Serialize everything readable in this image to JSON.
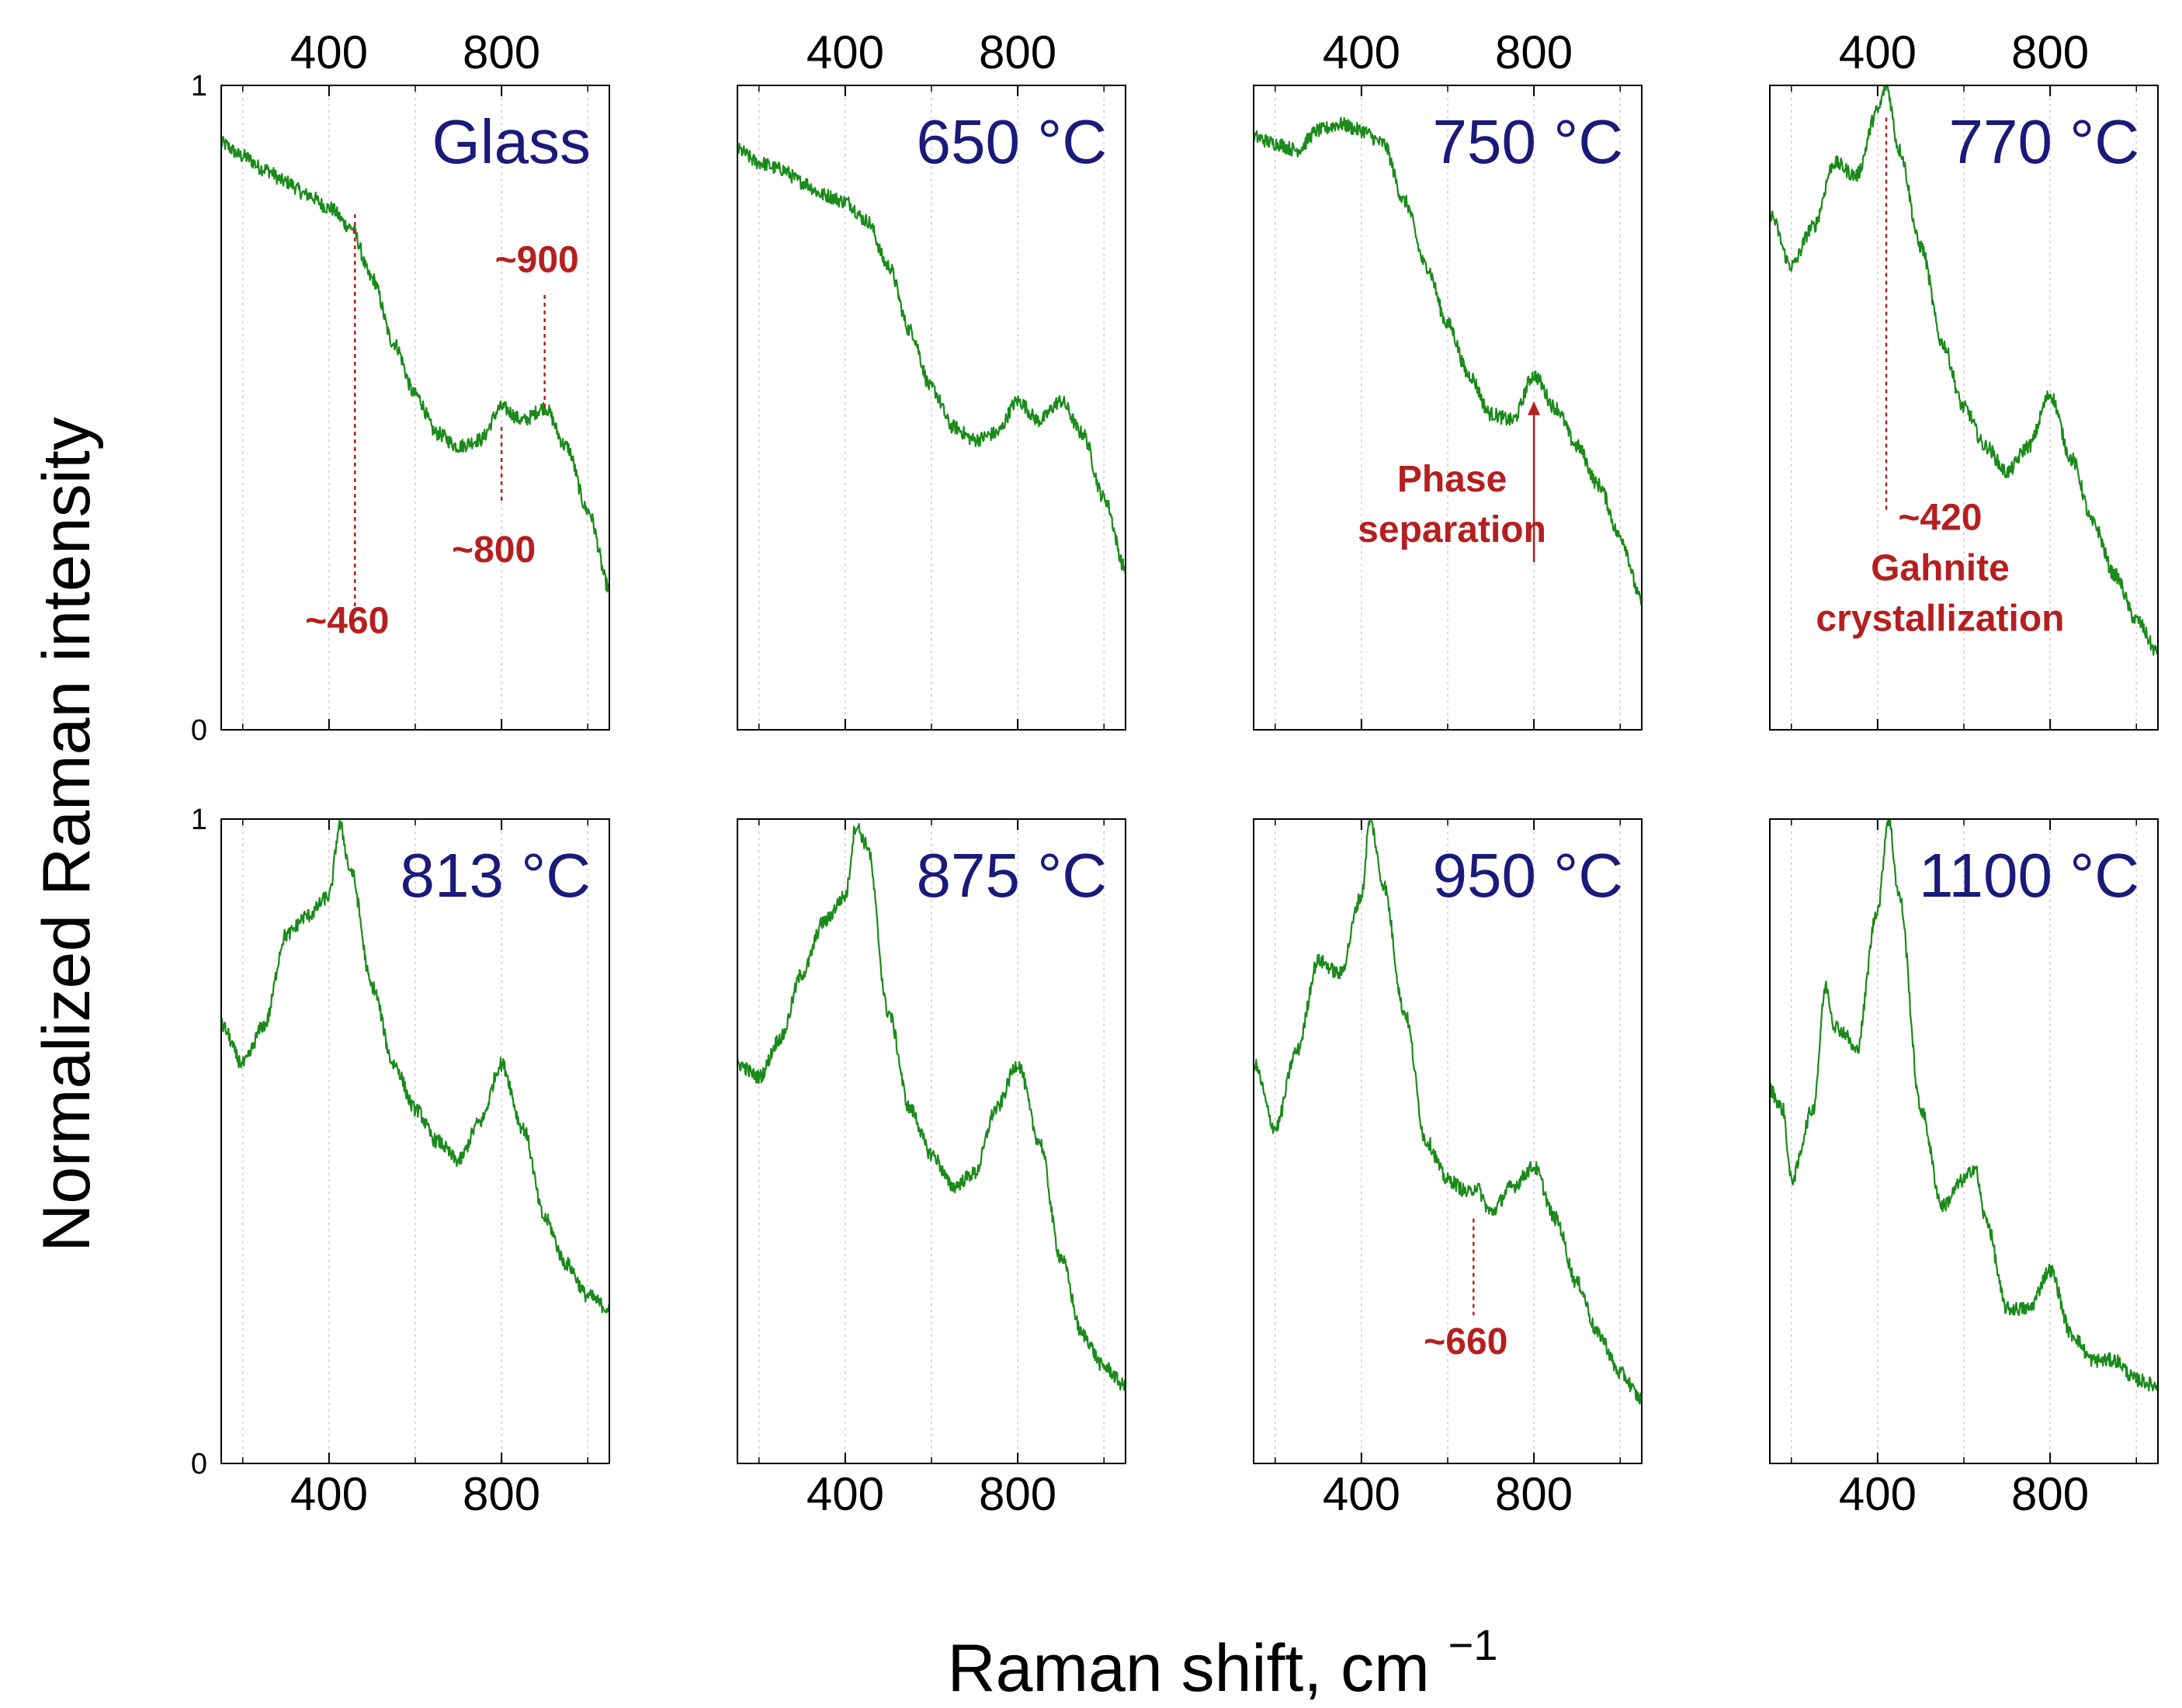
{
  "chart_data": {
    "type": "line",
    "ylabel": "Normalized Raman intensity",
    "xlabel": "Raman shift, cm",
    "xlabel_superscript": "−1",
    "xlim": [
      150,
      1050
    ],
    "ylim": [
      0,
      1
    ],
    "x_ticks": [
      "400",
      "800"
    ],
    "x_tick_values": [
      400,
      800
    ],
    "y_ticks": [
      "0",
      "1"
    ],
    "y_tick_values": [
      0,
      1
    ],
    "colors": {
      "line": "#1a8a1a",
      "label": "#1a1a7a",
      "annotation": "#b51f1f",
      "grid": "#cccccc"
    },
    "panels": [
      {
        "label": "Glass",
        "points": [
          [
            150,
            0.91
          ],
          [
            200,
            0.89
          ],
          [
            250,
            0.87
          ],
          [
            300,
            0.85
          ],
          [
            350,
            0.83
          ],
          [
            400,
            0.81
          ],
          [
            450,
            0.78
          ],
          [
            500,
            0.7
          ],
          [
            550,
            0.6
          ],
          [
            600,
            0.52
          ],
          [
            650,
            0.46
          ],
          [
            700,
            0.44
          ],
          [
            750,
            0.45
          ],
          [
            800,
            0.5
          ],
          [
            850,
            0.48
          ],
          [
            900,
            0.5
          ],
          [
            950,
            0.44
          ],
          [
            1000,
            0.34
          ],
          [
            1050,
            0.22
          ]
        ],
        "annotations": [
          {
            "text": "~460",
            "x": 460,
            "y_from": 0.8,
            "y_to": 0.18,
            "label_y": 0.15
          },
          {
            "text": "~800",
            "x": 800,
            "y_from": 0.47,
            "y_to": 0.35,
            "label_y": 0.26
          },
          {
            "text": "~900",
            "x": 900,
            "y_from": 0.5,
            "y_to": 0.68,
            "label_y": 0.71
          }
        ]
      },
      {
        "label": "650 °C",
        "points": [
          [
            150,
            0.9
          ],
          [
            200,
            0.88
          ],
          [
            250,
            0.87
          ],
          [
            300,
            0.85
          ],
          [
            350,
            0.83
          ],
          [
            400,
            0.82
          ],
          [
            450,
            0.79
          ],
          [
            500,
            0.72
          ],
          [
            550,
            0.62
          ],
          [
            600,
            0.53
          ],
          [
            650,
            0.47
          ],
          [
            700,
            0.45
          ],
          [
            750,
            0.46
          ],
          [
            800,
            0.51
          ],
          [
            850,
            0.48
          ],
          [
            900,
            0.51
          ],
          [
            950,
            0.46
          ],
          [
            1000,
            0.36
          ],
          [
            1050,
            0.25
          ]
        ],
        "annotations": []
      },
      {
        "label": "750 °C",
        "points": [
          [
            150,
            0.92
          ],
          [
            200,
            0.91
          ],
          [
            250,
            0.9
          ],
          [
            300,
            0.93
          ],
          [
            350,
            0.94
          ],
          [
            400,
            0.93
          ],
          [
            450,
            0.91
          ],
          [
            500,
            0.82
          ],
          [
            550,
            0.72
          ],
          [
            600,
            0.63
          ],
          [
            650,
            0.55
          ],
          [
            700,
            0.49
          ],
          [
            750,
            0.48
          ],
          [
            800,
            0.55
          ],
          [
            850,
            0.5
          ],
          [
            900,
            0.44
          ],
          [
            950,
            0.38
          ],
          [
            1000,
            0.3
          ],
          [
            1050,
            0.2
          ]
        ],
        "annotations": [
          {
            "text": "Phase|separation",
            "x": 800,
            "y_from": 0.26,
            "y_to": 0.51,
            "arrow": true,
            "label_x": 610,
            "label_y": 0.37
          }
        ]
      },
      {
        "label": "770 °C",
        "points": [
          [
            150,
            0.8
          ],
          [
            200,
            0.72
          ],
          [
            250,
            0.78
          ],
          [
            300,
            0.88
          ],
          [
            350,
            0.86
          ],
          [
            400,
            0.96
          ],
          [
            420,
            1.0
          ],
          [
            450,
            0.9
          ],
          [
            500,
            0.75
          ],
          [
            550,
            0.6
          ],
          [
            600,
            0.5
          ],
          [
            650,
            0.44
          ],
          [
            700,
            0.4
          ],
          [
            750,
            0.44
          ],
          [
            800,
            0.52
          ],
          [
            850,
            0.42
          ],
          [
            900,
            0.32
          ],
          [
            950,
            0.24
          ],
          [
            1000,
            0.17
          ],
          [
            1050,
            0.12
          ]
        ],
        "annotations": [
          {
            "text": "~420|Gahnite|crystallization",
            "x": 420,
            "y_from": 0.95,
            "y_to": 0.34,
            "label_x": 545,
            "label_y": 0.31
          }
        ]
      },
      {
        "label": "813 °C",
        "points": [
          [
            150,
            0.68
          ],
          [
            200,
            0.62
          ],
          [
            250,
            0.68
          ],
          [
            300,
            0.82
          ],
          [
            350,
            0.85
          ],
          [
            400,
            0.88
          ],
          [
            425,
            0.99
          ],
          [
            450,
            0.92
          ],
          [
            500,
            0.74
          ],
          [
            550,
            0.62
          ],
          [
            600,
            0.55
          ],
          [
            650,
            0.5
          ],
          [
            700,
            0.47
          ],
          [
            750,
            0.53
          ],
          [
            800,
            0.62
          ],
          [
            850,
            0.52
          ],
          [
            900,
            0.38
          ],
          [
            950,
            0.31
          ],
          [
            1000,
            0.26
          ],
          [
            1050,
            0.24
          ]
        ],
        "annotations": []
      },
      {
        "label": "875 °C",
        "points": [
          [
            150,
            0.62
          ],
          [
            200,
            0.6
          ],
          [
            250,
            0.66
          ],
          [
            300,
            0.76
          ],
          [
            350,
            0.84
          ],
          [
            400,
            0.88
          ],
          [
            425,
            0.99
          ],
          [
            450,
            0.96
          ],
          [
            500,
            0.7
          ],
          [
            550,
            0.55
          ],
          [
            600,
            0.48
          ],
          [
            650,
            0.43
          ],
          [
            700,
            0.45
          ],
          [
            750,
            0.55
          ],
          [
            800,
            0.62
          ],
          [
            850,
            0.5
          ],
          [
            900,
            0.32
          ],
          [
            950,
            0.2
          ],
          [
            1000,
            0.15
          ],
          [
            1050,
            0.12
          ]
        ],
        "annotations": []
      },
      {
        "label": "950 °C",
        "points": [
          [
            150,
            0.62
          ],
          [
            200,
            0.52
          ],
          [
            250,
            0.64
          ],
          [
            300,
            0.78
          ],
          [
            350,
            0.76
          ],
          [
            400,
            0.88
          ],
          [
            420,
            1.0
          ],
          [
            450,
            0.9
          ],
          [
            500,
            0.7
          ],
          [
            550,
            0.5
          ],
          [
            600,
            0.44
          ],
          [
            650,
            0.42
          ],
          [
            665,
            0.43
          ],
          [
            700,
            0.39
          ],
          [
            750,
            0.43
          ],
          [
            800,
            0.46
          ],
          [
            850,
            0.38
          ],
          [
            900,
            0.28
          ],
          [
            950,
            0.2
          ],
          [
            1000,
            0.14
          ],
          [
            1050,
            0.1
          ]
        ],
        "annotations": [
          {
            "text": "~660",
            "x": 660,
            "y_from": 0.38,
            "y_to": 0.23,
            "label_y": 0.17
          }
        ]
      },
      {
        "label": "1100 °C",
        "points": [
          [
            150,
            0.58
          ],
          [
            180,
            0.55
          ],
          [
            200,
            0.44
          ],
          [
            250,
            0.55
          ],
          [
            280,
            0.74
          ],
          [
            300,
            0.68
          ],
          [
            320,
            0.67
          ],
          [
            350,
            0.64
          ],
          [
            400,
            0.86
          ],
          [
            425,
            1.0
          ],
          [
            450,
            0.88
          ],
          [
            500,
            0.55
          ],
          [
            550,
            0.4
          ],
          [
            600,
            0.44
          ],
          [
            625,
            0.46
          ],
          [
            650,
            0.38
          ],
          [
            700,
            0.24
          ],
          [
            750,
            0.24
          ],
          [
            800,
            0.3
          ],
          [
            850,
            0.2
          ],
          [
            900,
            0.16
          ],
          [
            950,
            0.16
          ],
          [
            1000,
            0.13
          ],
          [
            1050,
            0.12
          ]
        ],
        "annotations": []
      }
    ]
  }
}
